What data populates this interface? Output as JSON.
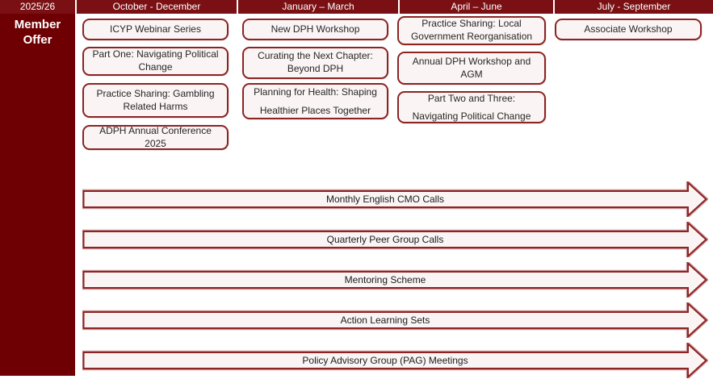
{
  "year_label": "2025/26",
  "sidebar_label": "Member Offer",
  "columns": [
    {
      "header": "October - December",
      "boxes": [
        {
          "label": "ICYP Webinar Series"
        },
        {
          "label": "Part One: Navigating Political Change"
        },
        {
          "label": "Practice Sharing: Gambling Related Harms"
        },
        {
          "label": "ADPH Annual Conference 2025"
        }
      ]
    },
    {
      "header": "January – March",
      "boxes": [
        {
          "label": "New DPH Workshop"
        },
        {
          "label": "Curating the Next Chapter: Beyond DPH"
        },
        {
          "label": "Planning for Health: Shaping Healthier Places Together"
        }
      ]
    },
    {
      "header": "April – June",
      "boxes": [
        {
          "label": "Practice Sharing: Local Government Reorganisation"
        },
        {
          "label": "Annual DPH Workshop and AGM"
        },
        {
          "label": "Part Two and Three: Navigating Political Change"
        }
      ]
    },
    {
      "header": "July - September",
      "boxes": [
        {
          "label": "Associate Workshop"
        }
      ]
    }
  ],
  "arrows": [
    {
      "label": "Monthly English CMO Calls"
    },
    {
      "label": "Quarterly Peer Group Calls"
    },
    {
      "label": "Mentoring Scheme"
    },
    {
      "label": "Action Learning Sets"
    },
    {
      "label": "Policy Advisory Group (PAG) Meetings"
    }
  ],
  "colors": {
    "header_bg": "#7a1013",
    "sidebar_bg": "#6e0003",
    "shape_border": "#8b2423",
    "shape_fill": "#faf5f4",
    "arrow_glow": "#cb9094",
    "header_text": "#ffffff",
    "body_text": "#262626"
  }
}
